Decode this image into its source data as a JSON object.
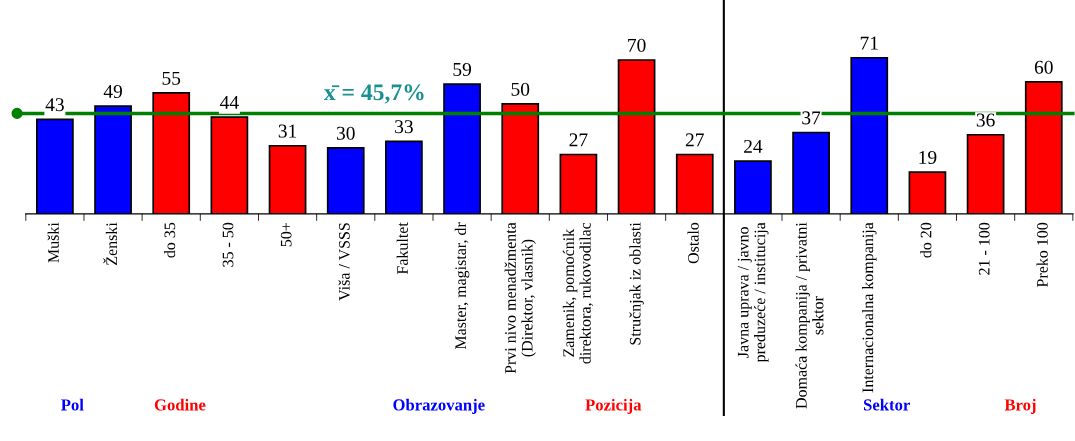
{
  "chart_data": {
    "type": "bar",
    "categories": [
      "Muški",
      "Ženski",
      "do 35",
      "35 - 50",
      "50+",
      "Viša / VSSS",
      "Fakultet",
      "Master, magistar, dr",
      "Prvi nivo menadžmenta\n(Direktor, vlasnik)",
      "Zamenik, pomoćnik\ndirektora, rukovodilac",
      "Stručnjak iz oblasti",
      "Ostalo",
      "Javna uprava / javno\npreduzeće / institucija",
      "Domaća kompanija / privatni\nsektor",
      "Internacionalna kompanija",
      "do 20",
      "21 - 100",
      "Preko 100"
    ],
    "values": [
      43,
      49,
      55,
      44,
      31,
      30,
      33,
      59,
      50,
      27,
      70,
      27,
      24,
      37,
      71,
      19,
      36,
      60
    ],
    "colors": [
      "#0000ff",
      "#0000ff",
      "#ff0000",
      "#ff0000",
      "#ff0000",
      "#0000ff",
      "#0000ff",
      "#0000ff",
      "#ff0000",
      "#ff0000",
      "#ff0000",
      "#ff0000",
      "#0000ff",
      "#0000ff",
      "#0000ff",
      "#ff0000",
      "#ff0000",
      "#ff0000"
    ],
    "data_labels": true,
    "ref_lines": [
      {
        "axis": "y",
        "value": 45.7,
        "label": "x̄ = 45,7%",
        "color": "#008000"
      }
    ],
    "annotations": [
      "Pol",
      "Godine",
      "Obrazovanje",
      "Pozicija",
      "Sektor",
      "Broj"
    ],
    "grid": false,
    "legend": false
  }
}
